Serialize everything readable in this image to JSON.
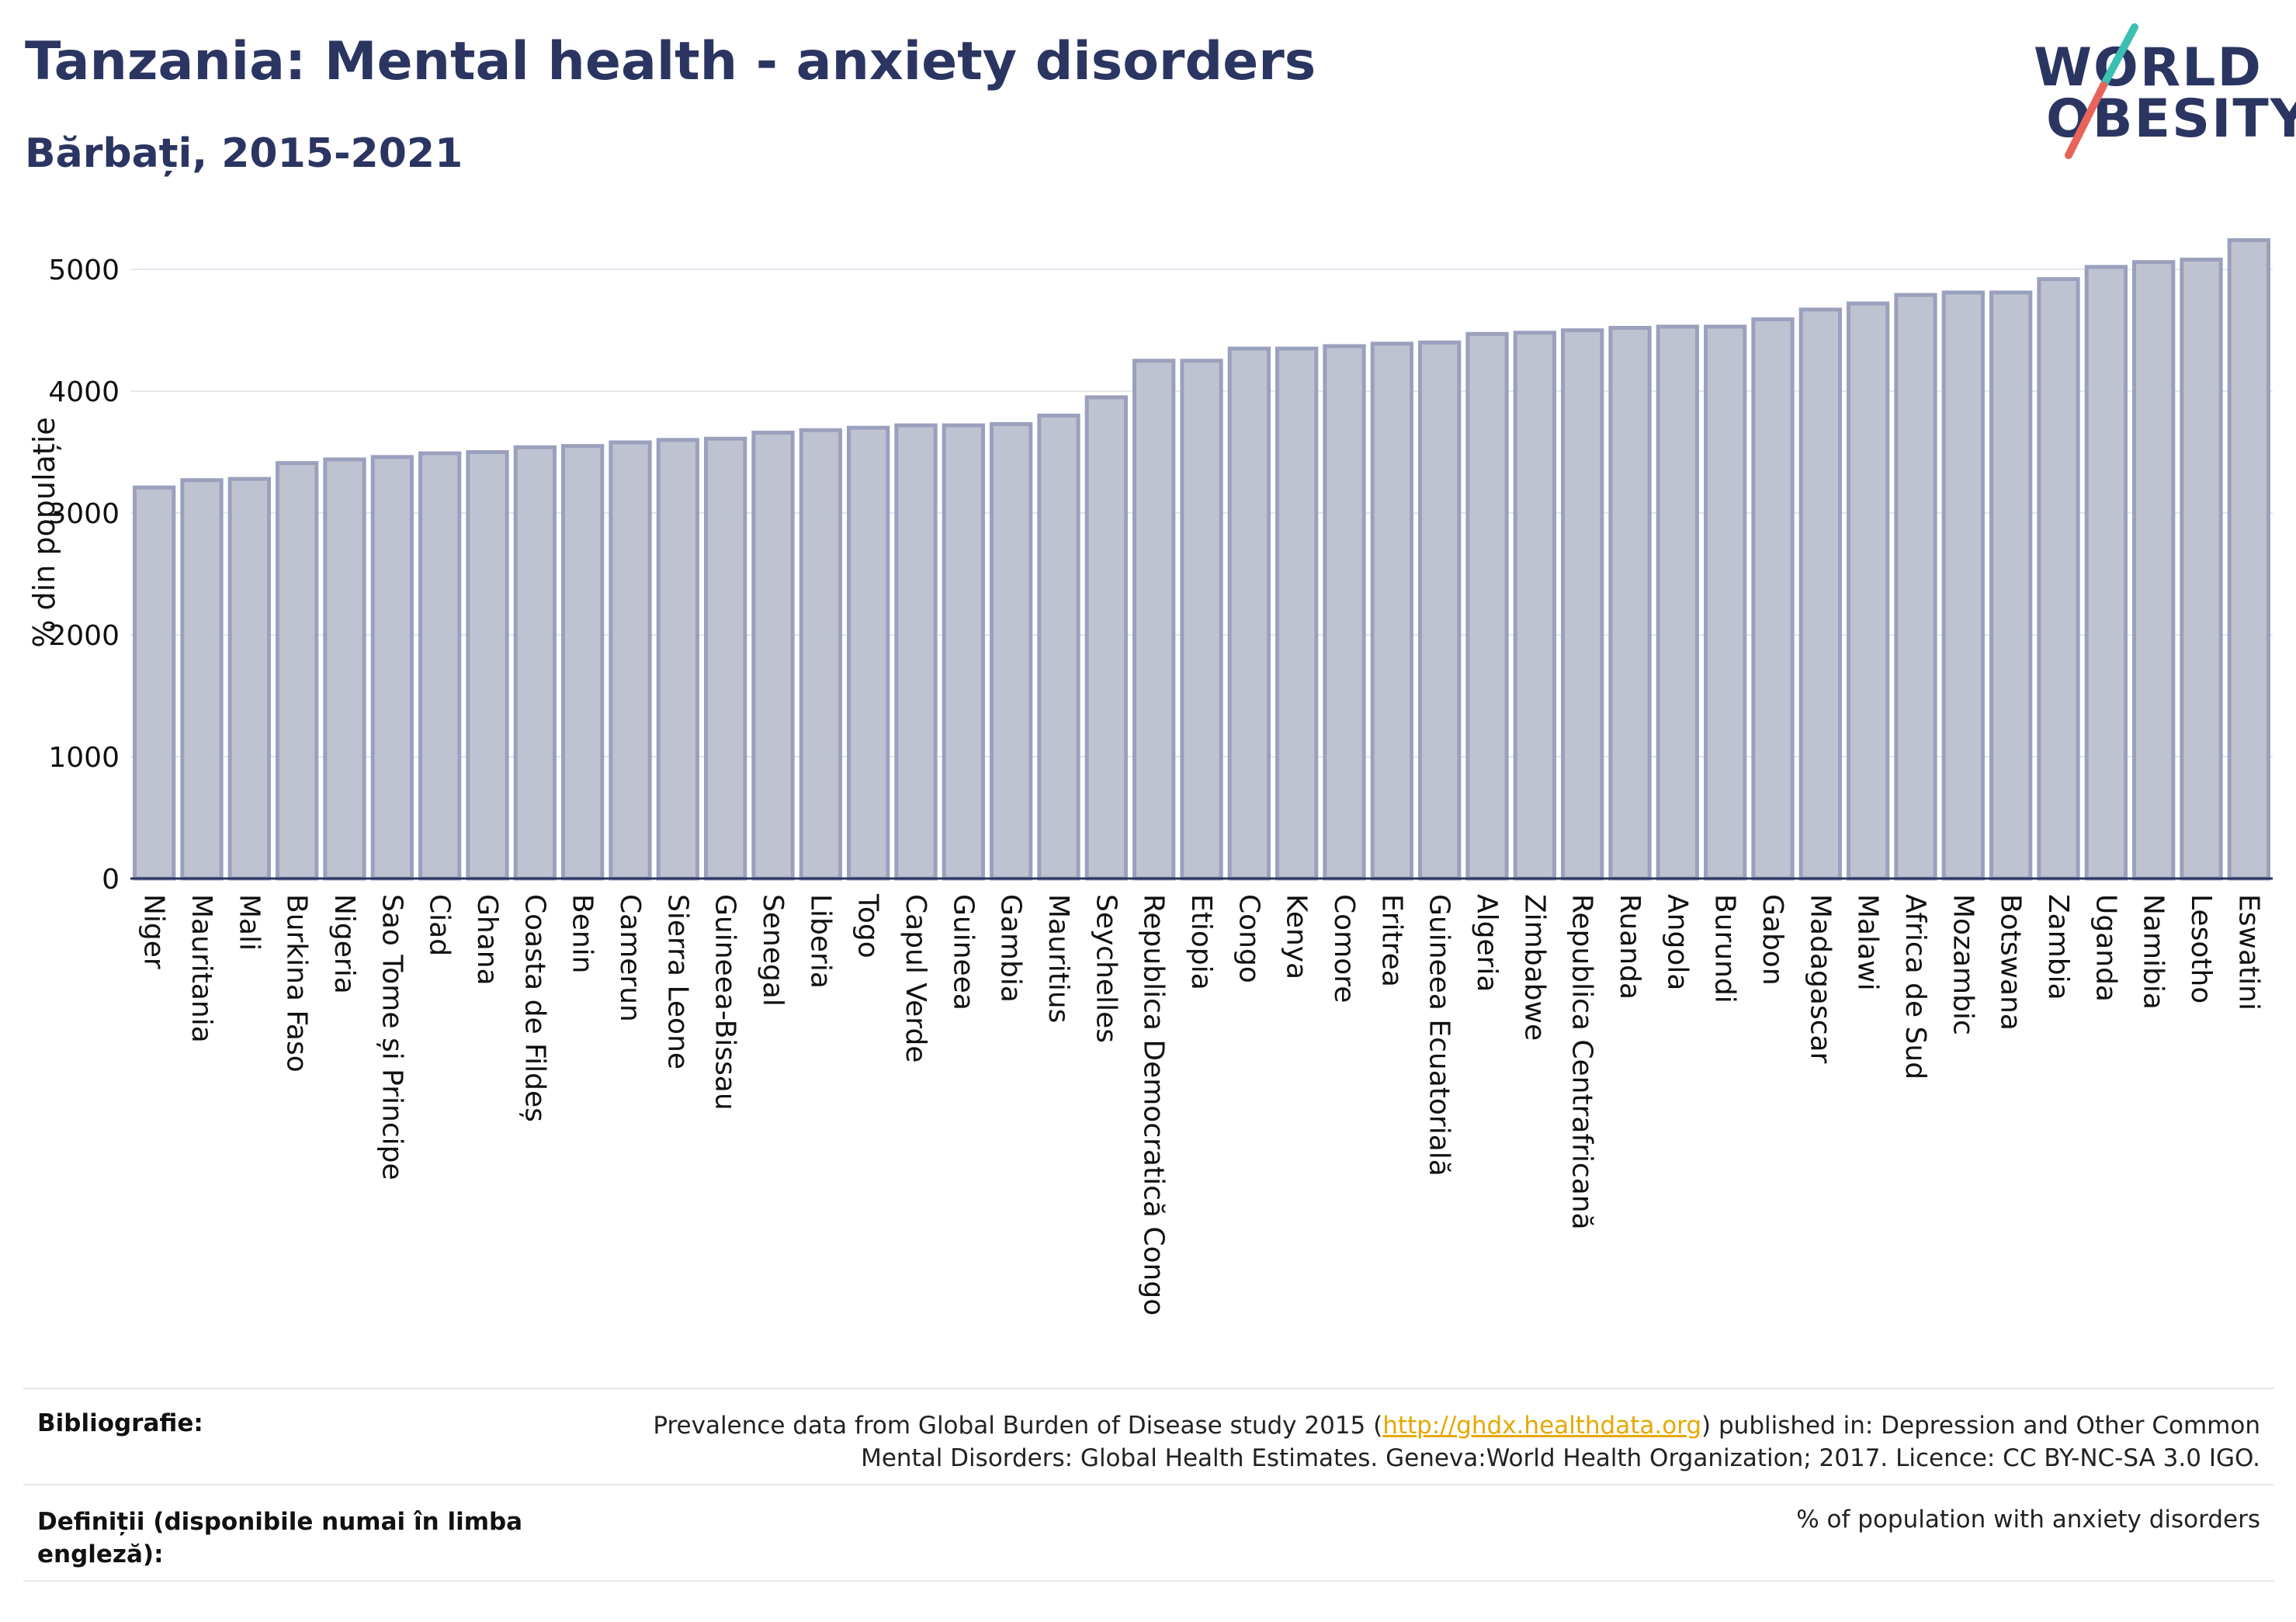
{
  "header": {
    "title": "Tanzania: Mental health - anxiety disorders",
    "subtitle": "Bărbați, 2015-2021"
  },
  "logo": {
    "line1": "WORLD",
    "line2": "OBESITY",
    "colors": {
      "text": "#2b3561",
      "slash_top": "#3bbfb3",
      "slash_bottom": "#e8645a"
    }
  },
  "chart_data": {
    "type": "bar",
    "title": "",
    "xlabel": "",
    "ylabel": "% din populație",
    "ylim": [
      0,
      5300
    ],
    "yticks": [
      0,
      1000,
      2000,
      3000,
      4000,
      5000
    ],
    "grid": true,
    "bar_color": "#bfc3d1",
    "bar_edge_color": "#9aa0bd",
    "categories": [
      "Niger",
      "Mauritania",
      "Mali",
      "Burkina Faso",
      "Nigeria",
      "Sao Tome și Principe",
      "Ciad",
      "Ghana",
      "Coasta de Fildeș",
      "Benin",
      "Camerun",
      "Sierra Leone",
      "Guineea-Bissau",
      "Senegal",
      "Liberia",
      "Togo",
      "Capul Verde",
      "Guineea",
      "Gambia",
      "Mauritius",
      "Seychelles",
      "Republica Democratică Congo",
      "Etiopia",
      "Congo",
      "Kenya",
      "Comore",
      "Eritrea",
      "Guineea Ecuatorială",
      "Algeria",
      "Zimbabwe",
      "Republica Centrafricană",
      "Ruanda",
      "Angola",
      "Burundi",
      "Gabon",
      "Madagascar",
      "Malawi",
      "Africa de Sud",
      "Mozambic",
      "Botswana",
      "Zambia",
      "Uganda",
      "Namibia",
      "Lesotho",
      "Eswatini"
    ],
    "values": [
      3210,
      3270,
      3280,
      3410,
      3440,
      3460,
      3490,
      3500,
      3540,
      3550,
      3580,
      3600,
      3610,
      3660,
      3680,
      3700,
      3720,
      3720,
      3730,
      3800,
      3950,
      4250,
      4250,
      4350,
      4350,
      4370,
      4390,
      4400,
      4470,
      4480,
      4500,
      4520,
      4530,
      4530,
      4590,
      4670,
      4720,
      4790,
      4810,
      4810,
      4920,
      5020,
      5060,
      5080,
      5240
    ]
  },
  "footer": {
    "bib_label": "Bibliografie:",
    "bib_text_before": "Prevalence data from Global Burden of Disease study 2015 (",
    "bib_link": "http://ghdx.healthdata.org",
    "bib_text_after": ") published in: Depression and Other Common",
    "bib_line2": "Mental Disorders: Global Health Estimates. Geneva:World Health Organization; 2017. Licence: CC BY-NC-SA 3.0 IGO.",
    "def_label_line1": "Definiții (disponibile numai în limba",
    "def_label_line2": "engleză):",
    "def_text": "% of population with anxiety disorders"
  }
}
